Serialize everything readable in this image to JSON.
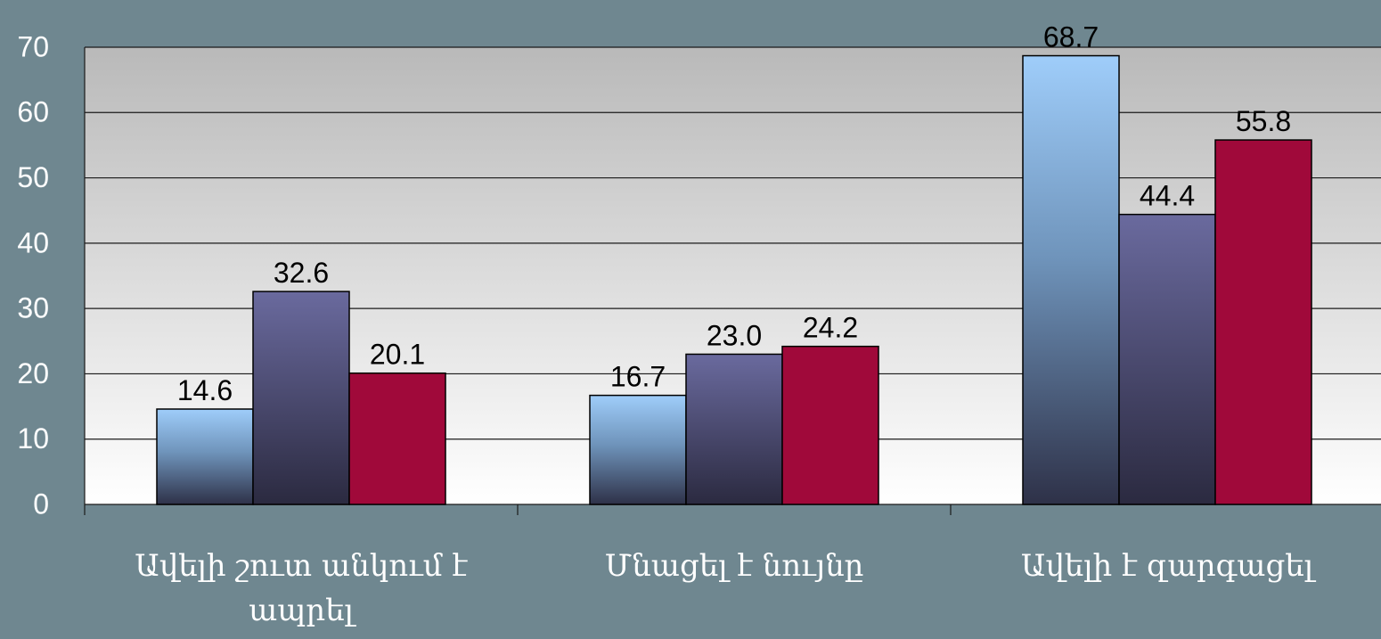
{
  "colors": {
    "background": "#6f8790",
    "plot_top": "#b9b9b9",
    "plot_bottom": "#ffffff",
    "series_1_top": "#9fcdfa",
    "series_1_bottom": "#2e3148",
    "series_2_top": "#6a6a9e",
    "series_2_bottom": "#2b2a40",
    "series_3": "#a0093a",
    "axis_text": "#ffffff",
    "data_label": "#000000"
  },
  "chart_data": {
    "type": "bar",
    "categories": [
      "Ավելի շուտ անկում է ապրել",
      "Մնացել է նույնը",
      "Ավելի է զարգացել"
    ],
    "series": [
      {
        "values": [
          14.6,
          16.7,
          68.7
        ],
        "labels": [
          "14.6",
          "16.7",
          "68.7"
        ]
      },
      {
        "values": [
          32.6,
          23.0,
          44.4
        ],
        "labels": [
          "32.6",
          "23.0",
          "44.4"
        ]
      },
      {
        "values": [
          20.1,
          24.2,
          55.8
        ],
        "labels": [
          "20.1",
          "24.2",
          "55.8"
        ]
      }
    ],
    "yticks": [
      "0",
      "10",
      "20",
      "30",
      "40",
      "50",
      "60",
      "70"
    ],
    "ylim": [
      0,
      70
    ],
    "grid": true,
    "legend": "none"
  }
}
